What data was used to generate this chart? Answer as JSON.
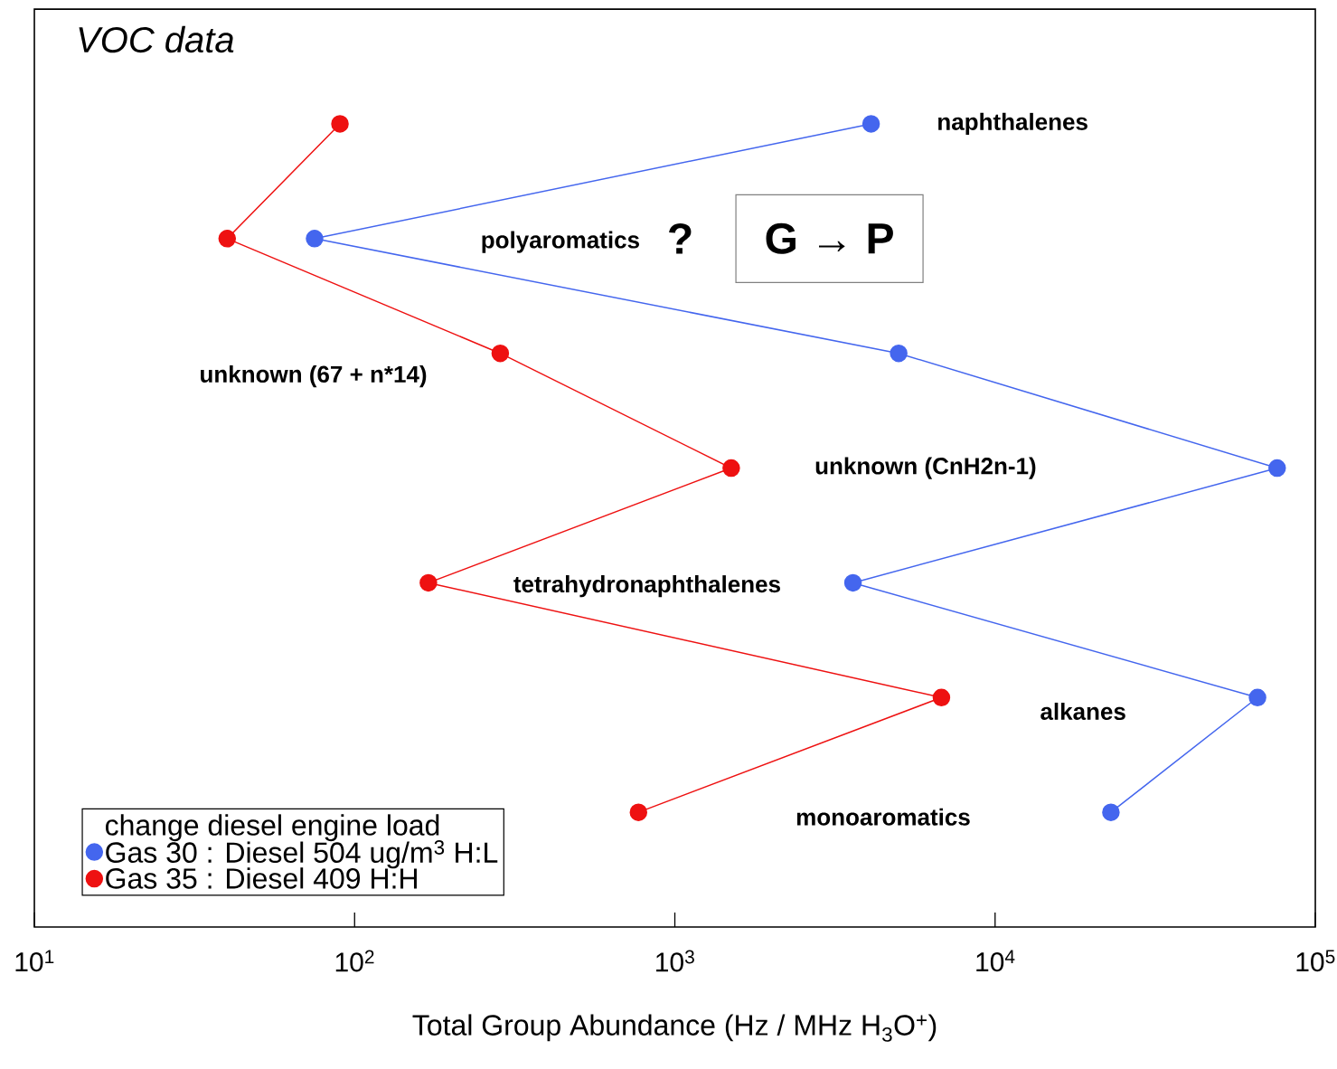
{
  "chart_data": {
    "type": "line",
    "title": "VOC data",
    "orientation": "horizontal",
    "log": "x",
    "categories": [
      "naphthalenes",
      "polyaromatics",
      "unknown (67 + n*14)",
      "unknown (CnH2n-1)",
      "tetrahydronaphthalenes",
      "alkanes",
      "monoaromatics"
    ],
    "series": [
      {
        "name": "Gas 30 : Diesel 504 ug/m$^{3}$  H:L",
        "color": "#4466ee",
        "values": [
          4100,
          75,
          5000,
          76000,
          3600,
          66000,
          23000
        ]
      },
      {
        "name": "Gas 35 : Diesel 409  H:H",
        "color": "#ee1111",
        "values": [
          90,
          40,
          285,
          1500,
          170,
          6800,
          770
        ]
      }
    ],
    "xlim": [
      10,
      100000
    ],
    "xticks": [
      {
        "value": 10,
        "label": "10$^{1}$"
      },
      {
        "value": 100,
        "label": "10$^{2}$"
      },
      {
        "value": 1000,
        "label": "10$^{3}$"
      },
      {
        "value": 10000,
        "label": "10$^{4}$"
      },
      {
        "value": 100000,
        "label": "10$^{5}$"
      }
    ],
    "xlabel": "Total Group Abundance (Hz / MHz H$_{3}$O$^{+}$)",
    "legend_title": "change diesel engine load",
    "legend": "bottom left",
    "tick_labels": "x",
    "marker": "circle",
    "line_style": "solid",
    "annotations": [
      "?",
      "G → P"
    ]
  }
}
